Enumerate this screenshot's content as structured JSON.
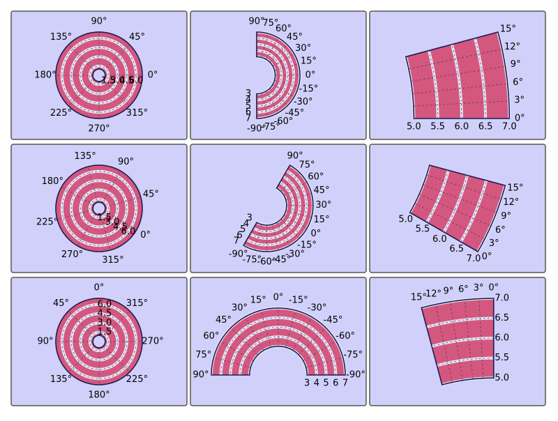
{
  "chart_data": [
    {
      "type": "polar",
      "color": "#d4577f",
      "theta_offset": 0,
      "thetalim": [
        0,
        360
      ],
      "rlim": [
        1,
        7
      ],
      "thetaticks": [
        {
          "value": 0,
          "label": "0°"
        },
        {
          "value": 45,
          "label": "45°"
        },
        {
          "value": 90,
          "label": "90°"
        },
        {
          "value": 135,
          "label": "135°"
        },
        {
          "value": 180,
          "label": "180°"
        },
        {
          "value": 225,
          "label": "225°"
        },
        {
          "value": 270,
          "label": "270°"
        },
        {
          "value": 315,
          "label": "315°"
        }
      ],
      "rticks": [
        1.5,
        {
          "value": 3,
          "label": "3.0"
        },
        4.5,
        {
          "value": 6,
          "label": "6.0"
        }
      ]
    },
    {
      "type": "polar",
      "color": "#d4577f",
      "theta_offset": 0,
      "thetalim": [
        -90,
        90
      ],
      "rlim": [
        3,
        7
      ],
      "thetaticks": [
        {
          "value": 90,
          "label": "90°"
        },
        {
          "value": 75,
          "label": "75°"
        },
        {
          "value": 60,
          "label": "60°"
        },
        {
          "value": 45,
          "label": "45°"
        },
        {
          "value": 30,
          "label": "30°"
        },
        {
          "value": 15,
          "label": "15°"
        },
        {
          "value": 0,
          "label": "0°"
        },
        {
          "value": -15,
          "label": "-15°"
        },
        {
          "value": -30,
          "label": "-30°"
        },
        {
          "value": -45,
          "label": "-45°"
        },
        {
          "value": -60,
          "label": "-60°"
        },
        {
          "value": -75,
          "label": "-75°"
        },
        {
          "value": -90,
          "label": "-90°"
        }
      ],
      "rticks": [
        3,
        4,
        5,
        6,
        7
      ]
    },
    {
      "type": "polar",
      "color": "#d4577f",
      "theta_offset": 0,
      "thetalim": [
        0,
        15
      ],
      "rlim": [
        5,
        7
      ],
      "thetaticks": [
        {
          "value": 0,
          "label": "0°"
        },
        {
          "value": 3,
          "label": "3°"
        },
        {
          "value": 6,
          "label": "6°"
        },
        {
          "value": 9,
          "label": "9°"
        },
        {
          "value": 12,
          "label": "12°"
        },
        {
          "value": 15,
          "label": "15°"
        }
      ],
      "rticks": [
        {
          "value": 5,
          "label": "5.0"
        },
        5.5,
        {
          "value": 6,
          "label": "6.0"
        },
        6.5,
        {
          "value": 7,
          "label": "7.0"
        }
      ]
    },
    {
      "type": "polar",
      "color": "#d4577f",
      "theta_offset": -30,
      "thetalim": [
        0,
        360
      ],
      "rlim": [
        1,
        7
      ],
      "thetaticks": [
        {
          "value": 0,
          "label": "0°"
        },
        {
          "value": 45,
          "label": "45°"
        },
        {
          "value": 90,
          "label": "90°"
        },
        {
          "value": 135,
          "label": "135°"
        },
        {
          "value": 180,
          "label": "180°"
        },
        {
          "value": 225,
          "label": "225°"
        },
        {
          "value": 270,
          "label": "270°"
        },
        {
          "value": 315,
          "label": "315°"
        }
      ],
      "rticks": [
        1.5,
        {
          "value": 3,
          "label": "3.0"
        },
        4.5,
        {
          "value": 6,
          "label": "6.0"
        }
      ]
    },
    {
      "type": "polar",
      "color": "#d4577f",
      "theta_offset": -30,
      "thetalim": [
        -90,
        90
      ],
      "rlim": [
        3,
        7
      ],
      "thetaticks": [
        {
          "value": 90,
          "label": "90°"
        },
        {
          "value": 75,
          "label": "75°"
        },
        {
          "value": 60,
          "label": "60°"
        },
        {
          "value": 45,
          "label": "45°"
        },
        {
          "value": 30,
          "label": "30°"
        },
        {
          "value": 15,
          "label": "15°"
        },
        {
          "value": 0,
          "label": "0°"
        },
        {
          "value": -15,
          "label": "-15°"
        },
        {
          "value": -30,
          "label": "-30°"
        },
        {
          "value": -45,
          "label": "-45°"
        },
        {
          "value": -60,
          "label": "-60°"
        },
        {
          "value": -75,
          "label": "-75°"
        },
        {
          "value": -90,
          "label": "-90°"
        }
      ],
      "rticks": [
        3,
        4,
        5,
        6,
        7
      ]
    },
    {
      "type": "polar",
      "color": "#d4577f",
      "theta_offset": -30,
      "thetalim": [
        0,
        15
      ],
      "rlim": [
        5,
        7
      ],
      "thetaticks": [
        {
          "value": 0,
          "label": "0°"
        },
        {
          "value": 3,
          "label": "3°"
        },
        {
          "value": 6,
          "label": "6°"
        },
        {
          "value": 9,
          "label": "9°"
        },
        {
          "value": 12,
          "label": "12°"
        },
        {
          "value": 15,
          "label": "15°"
        }
      ],
      "rticks": [
        {
          "value": 5,
          "label": "5.0"
        },
        5.5,
        {
          "value": 6,
          "label": "6.0"
        },
        6.5,
        {
          "value": 7,
          "label": "7.0"
        }
      ]
    },
    {
      "type": "polar",
      "color": "#d4577f",
      "theta_offset": 90,
      "thetalim": [
        0,
        360
      ],
      "rlim": [
        1,
        7
      ],
      "thetaticks": [
        {
          "value": 0,
          "label": "0°"
        },
        {
          "value": 45,
          "label": "45°"
        },
        {
          "value": 90,
          "label": "90°"
        },
        {
          "value": 135,
          "label": "135°"
        },
        {
          "value": 180,
          "label": "180°"
        },
        {
          "value": 225,
          "label": "225°"
        },
        {
          "value": 270,
          "label": "270°"
        },
        {
          "value": 315,
          "label": "315°"
        }
      ],
      "rticks": [
        1.5,
        {
          "value": 3,
          "label": "3.0"
        },
        4.5,
        {
          "value": 6,
          "label": "6.0"
        }
      ]
    },
    {
      "type": "polar",
      "color": "#d4577f",
      "theta_offset": 90,
      "thetalim": [
        -90,
        90
      ],
      "rlim": [
        3,
        7
      ],
      "thetaticks": [
        {
          "value": 90,
          "label": "90°"
        },
        {
          "value": 75,
          "label": "75°"
        },
        {
          "value": 60,
          "label": "60°"
        },
        {
          "value": 45,
          "label": "45°"
        },
        {
          "value": 30,
          "label": "30°"
        },
        {
          "value": 15,
          "label": "15°"
        },
        {
          "value": 0,
          "label": "0°"
        },
        {
          "value": -15,
          "label": "-15°"
        },
        {
          "value": -30,
          "label": "-30°"
        },
        {
          "value": -45,
          "label": "-45°"
        },
        {
          "value": -60,
          "label": "-60°"
        },
        {
          "value": -75,
          "label": "-75°"
        },
        {
          "value": -90,
          "label": "-90°"
        }
      ],
      "rticks": [
        3,
        4,
        5,
        6,
        7
      ]
    },
    {
      "type": "polar",
      "color": "#d4577f",
      "theta_offset": 90,
      "thetalim": [
        0,
        15
      ],
      "rlim": [
        5,
        7
      ],
      "thetaticks": [
        {
          "value": 0,
          "label": "0°"
        },
        {
          "value": 3,
          "label": "3°"
        },
        {
          "value": 6,
          "label": "6°"
        },
        {
          "value": 9,
          "label": "9°"
        },
        {
          "value": 12,
          "label": "12°"
        },
        {
          "value": 15,
          "label": "15°"
        }
      ],
      "rticks": [
        {
          "value": 5,
          "label": "5.0"
        },
        5.5,
        {
          "value": 6,
          "label": "6.0"
        },
        6.5,
        {
          "value": 7,
          "label": "7.0"
        }
      ]
    }
  ]
}
